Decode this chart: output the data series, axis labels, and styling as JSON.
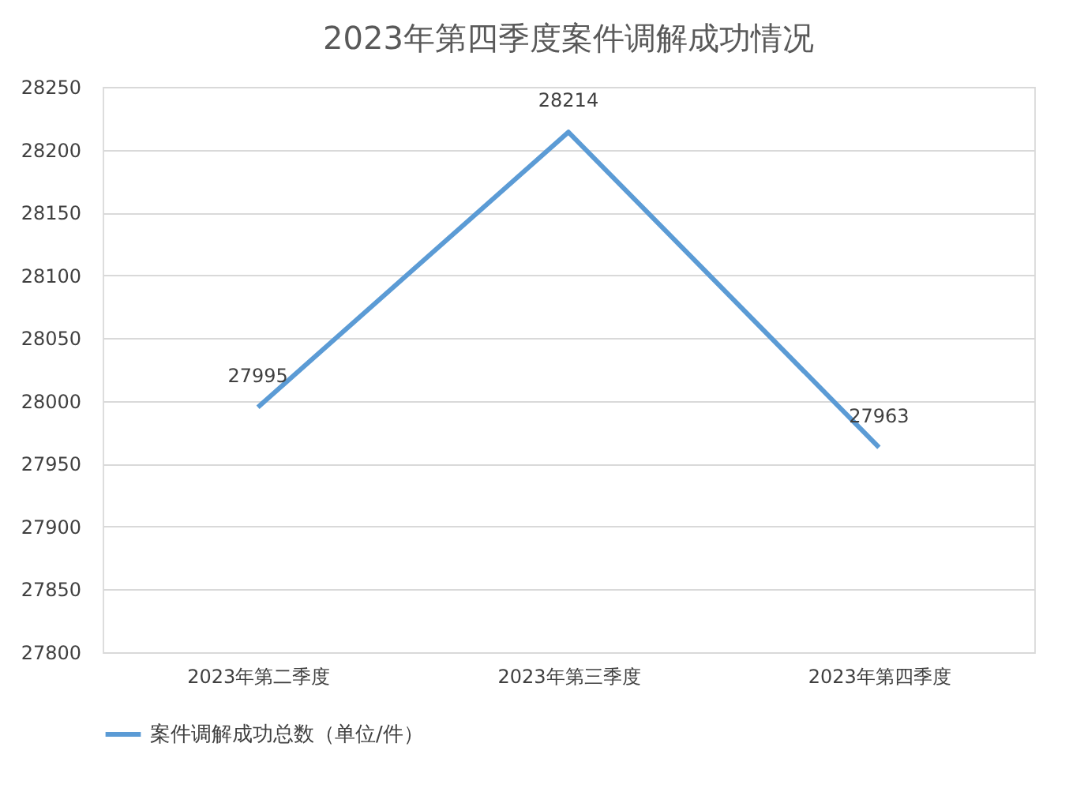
{
  "chart_data": {
    "type": "line",
    "title": "2023年第四季度案件调解成功情况",
    "categories": [
      "2023年第二季度",
      "2023年第三季度",
      "2023年第四季度"
    ],
    "series": [
      {
        "name": "案件调解成功总数（单位/件）",
        "color": "#5b9bd5",
        "values": [
          27995,
          28214,
          27963
        ]
      }
    ],
    "ylim": [
      27800,
      28250
    ],
    "yticks": [
      27800,
      27850,
      27900,
      27950,
      28000,
      28050,
      28100,
      28150,
      28200,
      28250
    ],
    "grid": "y",
    "legend": "bottom",
    "data_labels": true,
    "marker": "none",
    "line_style": "solid"
  }
}
